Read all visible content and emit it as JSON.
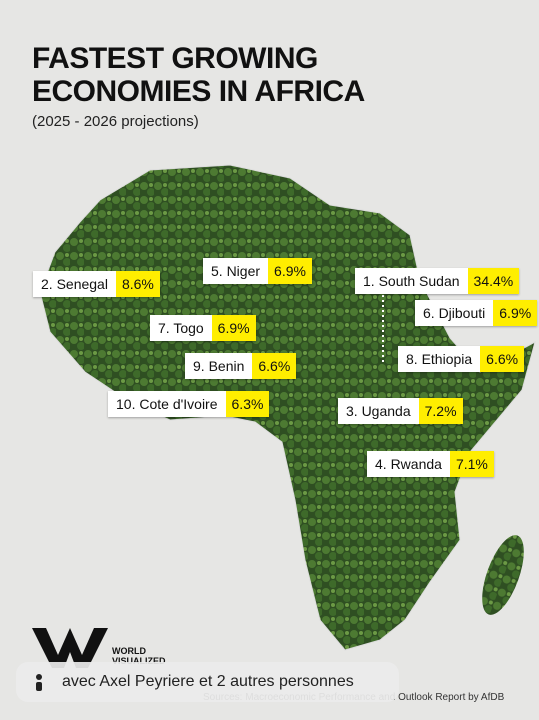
{
  "header": {
    "title_line1": "FASTEST GROWING",
    "title_line2": "ECONOMIES IN AFRICA",
    "subtitle": "(2025 - 2026 projections)"
  },
  "labels": [
    {
      "name": "2. Senegal",
      "growth": "8.6%"
    },
    {
      "name": "5. Niger",
      "growth": "6.9%"
    },
    {
      "name": "1. South Sudan",
      "growth": "34.4%"
    },
    {
      "name": "6. Djibouti",
      "growth": "6.9%"
    },
    {
      "name": "7. Togo",
      "growth": "6.9%"
    },
    {
      "name": "9. Benin",
      "growth": "6.6%"
    },
    {
      "name": "8. Ethiopia",
      "growth": "6.6%"
    },
    {
      "name": "10. Cote d'Ivoire",
      "growth": "6.3%"
    },
    {
      "name": "3. Uganda",
      "growth": "7.2%"
    },
    {
      "name": "4. Rwanda",
      "growth": "7.1%"
    }
  ],
  "footer": {
    "brand_line1": "WORLD",
    "brand_line2": "VISUALIZED",
    "source": "Sources: Macroeconomic Performance and Outlook Report by AfDB"
  },
  "overlay": {
    "mention": "avec Axel Peyriere et 2 autres personnes"
  }
}
